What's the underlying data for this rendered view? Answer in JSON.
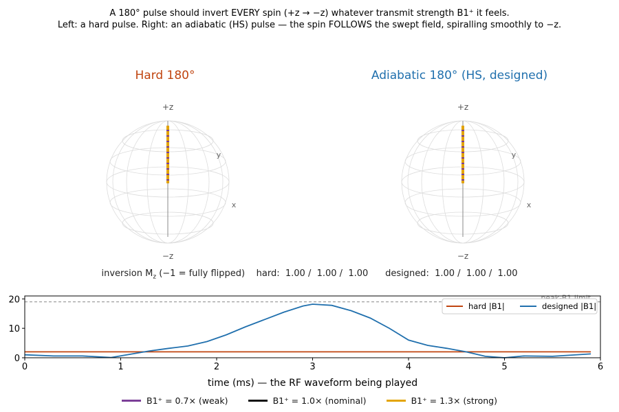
{
  "caption": {
    "line1": "A 180° pulse should invert EVERY spin (+z → −z) whatever transmit strength B1⁺ it feels.",
    "line2": "Left: a hard pulse. Right: an adiabatic (HS) pulse — the spin FOLLOWS the swept field, spiralling smoothly to −z."
  },
  "spheres": [
    {
      "title": "Hard 180°",
      "color": "#c0440f",
      "axis_top": "+z",
      "axis_bottom": "−z",
      "axis_y": "y",
      "axis_x": "x"
    },
    {
      "title": "Adiabatic 180° (HS, designed)",
      "color": "#1f6fad",
      "axis_top": "+z",
      "axis_bottom": "−z",
      "axis_y": "y",
      "axis_x": "x"
    }
  ],
  "stats": {
    "label_pre": "inversion M",
    "label_sub": "z",
    "label_post": " (−1 = fully flipped)",
    "hard_label": "hard:",
    "hard_values": "1.00 /  1.00 /  1.00",
    "designed_label": "designed:",
    "designed_values": "1.00 /  1.00 /  1.00"
  },
  "chart_data": {
    "type": "line",
    "xlabel": "time (ms)  —  the RF waveform being played",
    "ylabel": "",
    "xlim": [
      0,
      6
    ],
    "ylim": [
      0,
      21
    ],
    "xticks": [
      "0",
      "1",
      "2",
      "3",
      "4",
      "5",
      "6"
    ],
    "yticks": [
      "0",
      "10",
      "20"
    ],
    "reference_line": {
      "y": 19,
      "label": "peak-B1 limit",
      "color": "#888888"
    },
    "legend_position": "top-right",
    "series": [
      {
        "name": "hard |B1|",
        "color": "#c0440f",
        "x": [
          0,
          0.5,
          1,
          1.5,
          2,
          2.5,
          3,
          3.5,
          4,
          4.5,
          5,
          5.5,
          5.9
        ],
        "y": [
          2,
          2,
          2,
          2,
          2,
          2,
          2,
          2,
          2,
          2,
          2,
          2,
          2
        ]
      },
      {
        "name": "designed |B1|",
        "color": "#1f6fad",
        "x": [
          0,
          0.3,
          0.6,
          0.9,
          1.1,
          1.3,
          1.5,
          1.7,
          1.9,
          2.1,
          2.3,
          2.5,
          2.7,
          2.9,
          3.0,
          3.2,
          3.4,
          3.6,
          3.8,
          4.0,
          4.2,
          4.4,
          4.6,
          4.8,
          5.0,
          5.2,
          5.5,
          5.9
        ],
        "y": [
          1.0,
          0.6,
          0.6,
          0.1,
          1.2,
          2.3,
          3.2,
          4.0,
          5.5,
          7.8,
          10.5,
          13.0,
          15.5,
          17.6,
          18.2,
          17.8,
          16.0,
          13.5,
          10.0,
          6.0,
          4.2,
          3.2,
          2.0,
          0.5,
          0.0,
          0.6,
          0.5,
          1.3
        ]
      }
    ]
  },
  "bottom_legend": [
    {
      "label": "B1⁺ = 0.7×  (weak)",
      "color": "#7b3f98"
    },
    {
      "label": "B1⁺ = 1.0×  (nominal)",
      "color": "#111111"
    },
    {
      "label": "B1⁺ = 1.3×  (strong)",
      "color": "#e3a400"
    }
  ]
}
